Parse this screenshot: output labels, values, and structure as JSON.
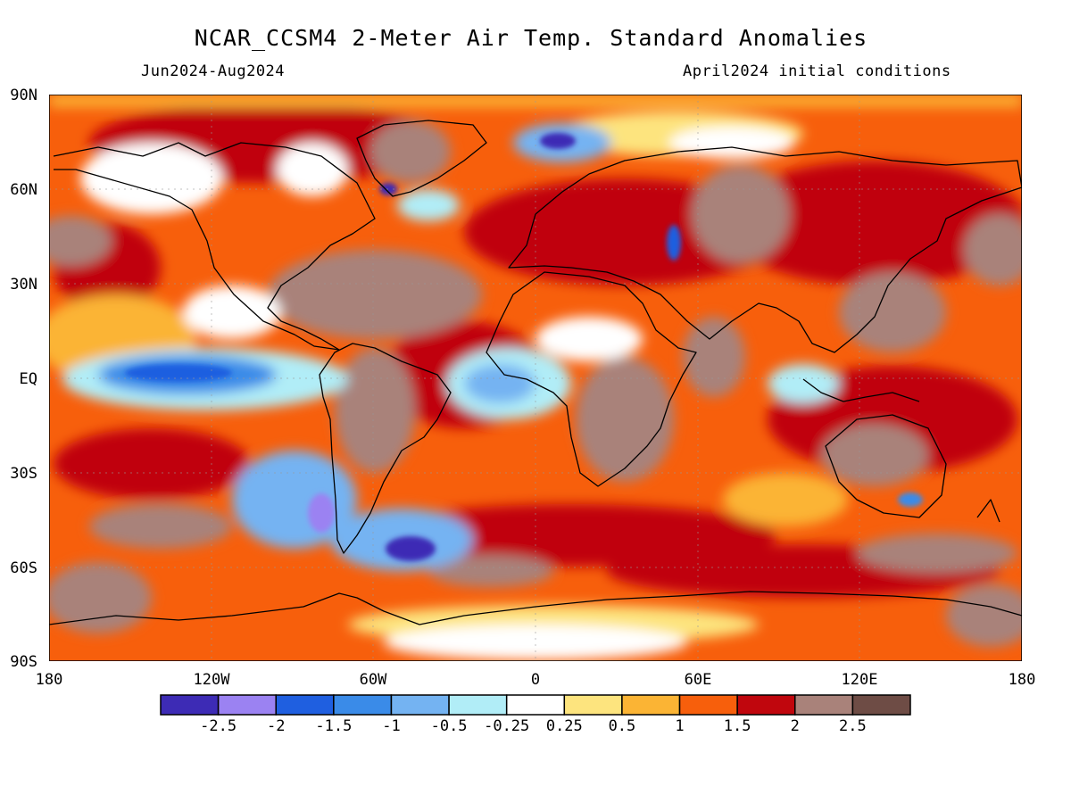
{
  "title": "NCAR_CCSM4 2-Meter Air Temp. Standard Anomalies",
  "period": "Jun2024-Aug2024",
  "initial_conditions": "April2024 initial conditions",
  "lat_labels": [
    "90N",
    "60N",
    "30N",
    "EQ",
    "30S",
    "60S",
    "90S"
  ],
  "lon_labels": [
    "180",
    "120W",
    "60W",
    "0",
    "60E",
    "120E",
    "180"
  ],
  "colorbar": {
    "colors": [
      "#3d2bb5",
      "#9b82f2",
      "#1f5fe0",
      "#3a8be8",
      "#74b3f2",
      "#b1edf7",
      "#ffffff",
      "#fde47e",
      "#fbb434",
      "#f75f0c",
      "#c0060d",
      "#a9827a",
      "#6e4c45"
    ],
    "labels": [
      "-2.5",
      "-2",
      "-1.5",
      "-1",
      "-0.5",
      "-0.25",
      "0.25",
      "0.5",
      "1",
      "1.5",
      "2",
      "2.5"
    ]
  }
}
